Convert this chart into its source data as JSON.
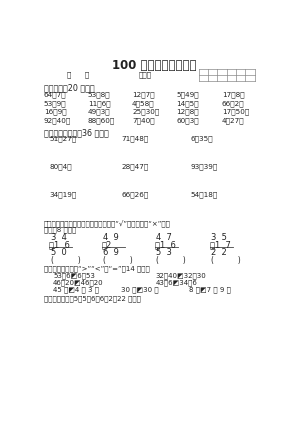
{
  "title": "100 以内的加法和减法",
  "subtitle_left": "一      班",
  "subtitle_mid": "姓名：",
  "section1": "一、口算（20 分）。",
  "oral_calc": [
    [
      "64）7＝",
      "53）8＝",
      "12）7＝",
      "5＋49＝",
      "17）8＝"
    ],
    [
      "53）9＝",
      "11）6＝",
      "4＋58＝",
      "14）5＝",
      "66）2＝"
    ],
    [
      "16）9＝",
      "49＋3＝",
      "25＋30＝",
      "12）8＝",
      "17＋50＝"
    ],
    [
      "92）40＝",
      "88）60＝",
      "7＋40＝",
      "60＋3＝",
      "4＋27＝"
    ]
  ],
  "section2": "二、用竖式计算（36 分）。",
  "vertical_calc": [
    [
      "51＋27＝",
      "71）48＝",
      "6＋35＝"
    ],
    [
      "80）4＝",
      "28＋47＝",
      "93）39＝"
    ],
    [
      "34）19＝",
      "66＋26＝",
      "54）18＝"
    ]
  ],
  "section4_title": "四、下面计算正确吗？正确的在下面打“√”，错误的打“×”并改",
  "section4_sub": "正。／8 分）。",
  "vertical_problems": [
    {
      "top": "3  4",
      "op_num": "）1  6",
      "result": "5  0"
    },
    {
      "top": "4  9",
      "op_num": "＋2",
      "result": "6  9"
    },
    {
      "top": "4  7",
      "op_num": "＋1  6",
      "result": "5  3"
    },
    {
      "top": "3  5",
      "op_num": "）1  7",
      "result": "2  2"
    }
  ],
  "section5": "五、在圆圈里填上“>”“<”或“=”／14 分）。",
  "compare_row1": [
    "53＋6◩6＋53",
    "32＋40◩32＋30"
  ],
  "compare_row2": [
    "46＋20◩46）20",
    "43）6◩34）6"
  ],
  "compare_row3": [
    "45 元◩4 元 3 角",
    "30 角◩30 分",
    "8 元◩7 元 9 角"
  ],
  "section7": "七、解决问题＂5＋5＋6＋6＋2＝22 分）。",
  "bg_color": "#ffffff",
  "text_color": "#222222",
  "font_size_title": 8.5,
  "font_size_body": 5.2,
  "font_size_section": 5.8,
  "font_size_vp": 6.0
}
